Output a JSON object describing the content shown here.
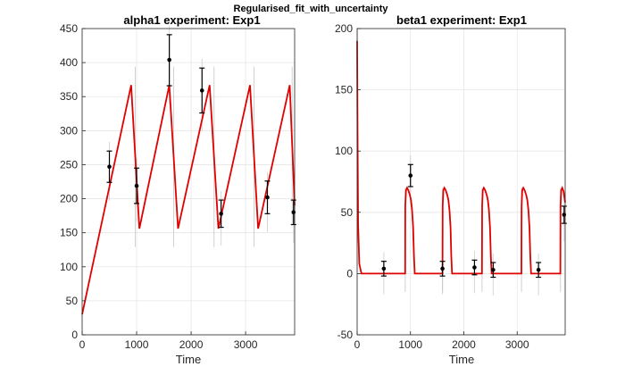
{
  "figure": {
    "title": "Regularised_fit_with_uncertainty"
  },
  "chart_data": [
    {
      "type": "line",
      "title": "alpha1 experiment: Exp1",
      "xlabel": "Time",
      "ylabel": "",
      "xlim": [
        0,
        3900
      ],
      "ylim": [
        0,
        450
      ],
      "xticks": [
        0,
        1000,
        2000,
        3000
      ],
      "yticks": [
        0,
        50,
        100,
        150,
        200,
        250,
        300,
        350,
        400,
        450
      ],
      "grid": true,
      "fit_color": "#e00000",
      "band_color": "#bdbdbd",
      "fit": {
        "x": [
          0,
          900,
          1050,
          1600,
          1760,
          2340,
          2500,
          3080,
          3230,
          3810,
          3900
        ],
        "y": [
          30,
          367,
          156,
          367,
          156,
          367,
          156,
          367,
          156,
          367,
          190
        ]
      },
      "observations": [
        {
          "x": 500,
          "y": 247,
          "lo": 224,
          "hi": 270
        },
        {
          "x": 1000,
          "y": 219,
          "lo": 193,
          "hi": 245
        },
        {
          "x": 1600,
          "y": 404,
          "lo": 366,
          "hi": 441
        },
        {
          "x": 2200,
          "y": 359,
          "lo": 326,
          "hi": 392
        },
        {
          "x": 2550,
          "y": 178,
          "lo": 158,
          "hi": 198
        },
        {
          "x": 3400,
          "y": 202,
          "lo": 178,
          "hi": 226
        },
        {
          "x": 3880,
          "y": 180,
          "lo": 162,
          "hi": 198
        }
      ]
    },
    {
      "type": "line",
      "title": "beta1 experiment: Exp1",
      "xlabel": "Time",
      "ylabel": "",
      "xlim": [
        0,
        3900
      ],
      "ylim": [
        -50,
        200
      ],
      "xticks": [
        0,
        1000,
        2000,
        3000
      ],
      "yticks": [
        -50,
        0,
        50,
        100,
        150,
        200
      ],
      "grid": true,
      "fit_color": "#e00000",
      "band_color": "#bdbdbd",
      "fit": {
        "x": [
          0,
          6,
          18,
          40,
          80,
          900,
          903,
          915,
          935,
          960,
          990,
          1010,
          1030,
          1050,
          1065,
          1080,
          1600,
          1603,
          1615,
          1635,
          1660,
          1690,
          1710,
          1730,
          1750,
          1765,
          1780,
          2340,
          2343,
          2355,
          2375,
          2400,
          2430,
          2450,
          2470,
          2490,
          2505,
          2520,
          3080,
          3083,
          3095,
          3115,
          3140,
          3170,
          3190,
          3210,
          3230,
          3245,
          3260,
          3810,
          3813,
          3825,
          3845,
          3870,
          3900
        ],
        "y": [
          190,
          120,
          40,
          8,
          0,
          0,
          55,
          68,
          70,
          68,
          64,
          60,
          52,
          38,
          15,
          0,
          0,
          55,
          68,
          70,
          68,
          64,
          60,
          52,
          38,
          15,
          0,
          0,
          55,
          68,
          70,
          68,
          64,
          60,
          52,
          38,
          15,
          0,
          0,
          55,
          68,
          70,
          68,
          64,
          60,
          52,
          38,
          15,
          0,
          0,
          55,
          68,
          70,
          67,
          58
        ]
      },
      "observations": [
        {
          "x": 500,
          "y": 4,
          "lo": -2,
          "hi": 10
        },
        {
          "x": 1000,
          "y": 80,
          "lo": 71,
          "hi": 89
        },
        {
          "x": 1600,
          "y": 4,
          "lo": -2,
          "hi": 10
        },
        {
          "x": 2200,
          "y": 5,
          "lo": -1,
          "hi": 11
        },
        {
          "x": 2550,
          "y": 3,
          "lo": -3,
          "hi": 9
        },
        {
          "x": 3400,
          "y": 3,
          "lo": -3,
          "hi": 9
        },
        {
          "x": 3880,
          "y": 48,
          "lo": 41,
          "hi": 55
        }
      ]
    }
  ]
}
